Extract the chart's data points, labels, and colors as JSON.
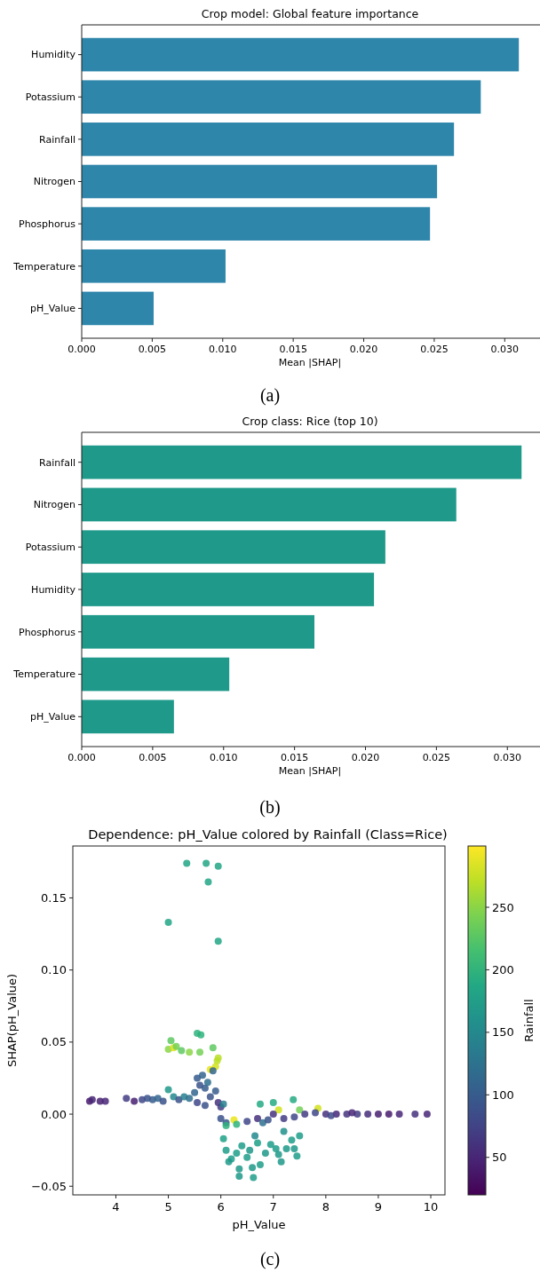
{
  "chart_data": [
    {
      "type": "bar",
      "orientation": "horizontal",
      "title": "Crop model: Global feature importance",
      "xlabel": "Mean |SHAP|",
      "categories": [
        "Humidity",
        "Potassium",
        "Rainfall",
        "Nitrogen",
        "Phosphorus",
        "Temperature",
        "pH_Value"
      ],
      "series": [
        {
          "color": "#2e86ab",
          "values": [
            0.031,
            0.0283,
            0.0264,
            0.0252,
            0.0247,
            0.0102,
            0.0051
          ]
        }
      ],
      "xlim": [
        0,
        0.0325
      ],
      "xticks": [
        {
          "value": 0,
          "label": "0.000"
        },
        0.005,
        {
          "value": 0.01,
          "label": "0.010"
        },
        0.015,
        {
          "value": 0.02,
          "label": "0.020"
        },
        0.025,
        {
          "value": 0.03,
          "label": "0.030"
        }
      ],
      "annotations": [
        "(a)"
      ]
    },
    {
      "type": "bar",
      "orientation": "horizontal",
      "title": "Crop class: Rice (top 10)",
      "xlabel": "Mean |SHAP|",
      "categories": [
        "Rainfall",
        "Nitrogen",
        "Potassium",
        "Humidity",
        "Phosphorus",
        "Temperature",
        "pH_Value"
      ],
      "series": [
        {
          "color": "#1f998a",
          "values": [
            0.031,
            0.0264,
            0.0214,
            0.0206,
            0.0164,
            0.0104,
            0.0065
          ]
        }
      ],
      "xlim": [
        0,
        0.0323
      ],
      "xticks": [
        {
          "value": 0,
          "label": "0.000"
        },
        0.005,
        {
          "value": 0.01,
          "label": "0.010"
        },
        0.015,
        {
          "value": 0.02,
          "label": "0.020"
        },
        0.025,
        {
          "value": 0.03,
          "label": "0.030"
        }
      ],
      "annotations": [
        "(b)"
      ]
    },
    {
      "type": "scatter",
      "title": "Dependence: pH_Value colored by Rainfall (Class=Rice)",
      "xlabel": "pH_Value",
      "ylabel": "SHAP(pH_Value)",
      "clabel": "Rainfall",
      "marker": "circle",
      "series": [
        {
          "x": [
            3.5,
            3.55,
            3.7,
            3.8,
            4.2,
            4.35,
            4.5,
            4.6,
            4.7,
            4.8,
            4.9,
            5.0,
            5.1,
            5.2,
            5.3,
            5.4,
            5.0,
            5.35,
            5.72,
            5.76,
            5.95,
            5.95,
            5.0,
            5.05,
            5.1,
            5.15,
            5.25,
            5.4,
            5.55,
            5.62,
            5.6,
            5.85,
            5.95,
            5.93,
            5.9,
            5.8,
            5.5,
            5.55,
            5.6,
            5.65,
            5.7,
            5.75,
            5.8,
            5.85,
            5.9,
            5.55,
            5.7,
            5.95,
            6.0,
            6.05,
            6.0,
            6.1,
            6.1,
            6.25,
            6.3,
            6.5,
            6.7,
            6.8,
            6.9,
            7.1,
            7.2,
            7.4,
            7.5,
            7.85,
            6.75,
            7.0,
            7.38,
            7.0,
            7.6,
            7.8,
            6.05,
            6.1,
            6.2,
            6.15,
            6.3,
            6.35,
            6.35,
            6.4,
            6.5,
            6.55,
            6.6,
            6.62,
            6.7,
            6.75,
            6.85,
            6.95,
            7.05,
            7.15,
            7.2,
            7.25,
            7.35,
            7.45,
            7.5,
            7.4,
            6.65,
            7.1,
            8.0,
            8.2,
            8.4,
            8.6,
            8.8,
            9.0,
            9.2,
            9.4,
            9.7,
            9.93,
            8.1,
            8.5
          ],
          "values": [
            0.009,
            0.01,
            0.009,
            0.009,
            0.011,
            0.009,
            0.01,
            0.011,
            0.01,
            0.011,
            0.009,
            0.017,
            0.012,
            0.01,
            0.012,
            0.011,
            0.133,
            0.174,
            0.174,
            0.161,
            0.172,
            0.12,
            0.045,
            0.051,
            0.046,
            0.047,
            0.044,
            0.043,
            0.056,
            0.055,
            0.043,
            0.046,
            0.039,
            0.037,
            0.033,
            0.031,
            0.015,
            0.025,
            0.02,
            0.027,
            0.018,
            0.022,
            0.012,
            0.03,
            0.016,
            0.008,
            0.006,
            0.008,
            0.005,
            0.007,
            -0.003,
            -0.006,
            -0.008,
            -0.004,
            -0.007,
            -0.005,
            -0.003,
            -0.006,
            -0.004,
            0.003,
            -0.003,
            -0.002,
            0.003,
            0.004,
            0.007,
            0.008,
            0.01,
            0.0,
            0.0,
            0.001,
            -0.017,
            -0.025,
            -0.031,
            -0.033,
            -0.027,
            -0.038,
            -0.043,
            -0.022,
            -0.03,
            -0.025,
            -0.037,
            -0.044,
            -0.02,
            -0.035,
            -0.027,
            -0.021,
            -0.024,
            -0.033,
            -0.012,
            -0.024,
            -0.018,
            -0.029,
            -0.015,
            -0.024,
            -0.015,
            -0.028,
            0,
            0,
            0,
            0,
            0,
            0,
            0,
            0,
            0,
            0,
            -0.001,
            0.001
          ],
          "cvalues": [
            40,
            50,
            45,
            50,
            70,
            45,
            80,
            90,
            100,
            110,
            90,
            170,
            150,
            90,
            140,
            120,
            185,
            185,
            185,
            185,
            185,
            185,
            250,
            230,
            285,
            240,
            230,
            250,
            200,
            200,
            240,
            230,
            270,
            270,
            280,
            290,
            110,
            100,
            90,
            110,
            100,
            120,
            90,
            110,
            100,
            80,
            90,
            60,
            70,
            140,
            90,
            100,
            200,
            290,
            200,
            80,
            60,
            120,
            90,
            280,
            70,
            80,
            240,
            280,
            190,
            190,
            190,
            60,
            70,
            80,
            180,
            175,
            175,
            170,
            175,
            170,
            170,
            175,
            175,
            170,
            170,
            175,
            180,
            175,
            170,
            175,
            175,
            170,
            160,
            170,
            175,
            175,
            175,
            170,
            150,
            170,
            60,
            50,
            60,
            70,
            55,
            45,
            40,
            50,
            60,
            50,
            80,
            50
          ]
        }
      ],
      "xlim": [
        3.18,
        10.27
      ],
      "xticks": [
        4,
        5,
        6,
        7,
        8,
        9,
        10
      ],
      "ylim": [
        -0.056,
        0.186
      ],
      "yticks": [
        {
          "value": -0.05,
          "label": "−0.05"
        },
        {
          "value": 0,
          "label": "0.00"
        },
        0.05,
        {
          "value": 0.1,
          "label": "0.10"
        },
        0.15
      ],
      "clim": [
        20,
        299
      ],
      "cticks": [
        50,
        100,
        150,
        200,
        250
      ],
      "annotations": [
        "(c)"
      ]
    }
  ]
}
